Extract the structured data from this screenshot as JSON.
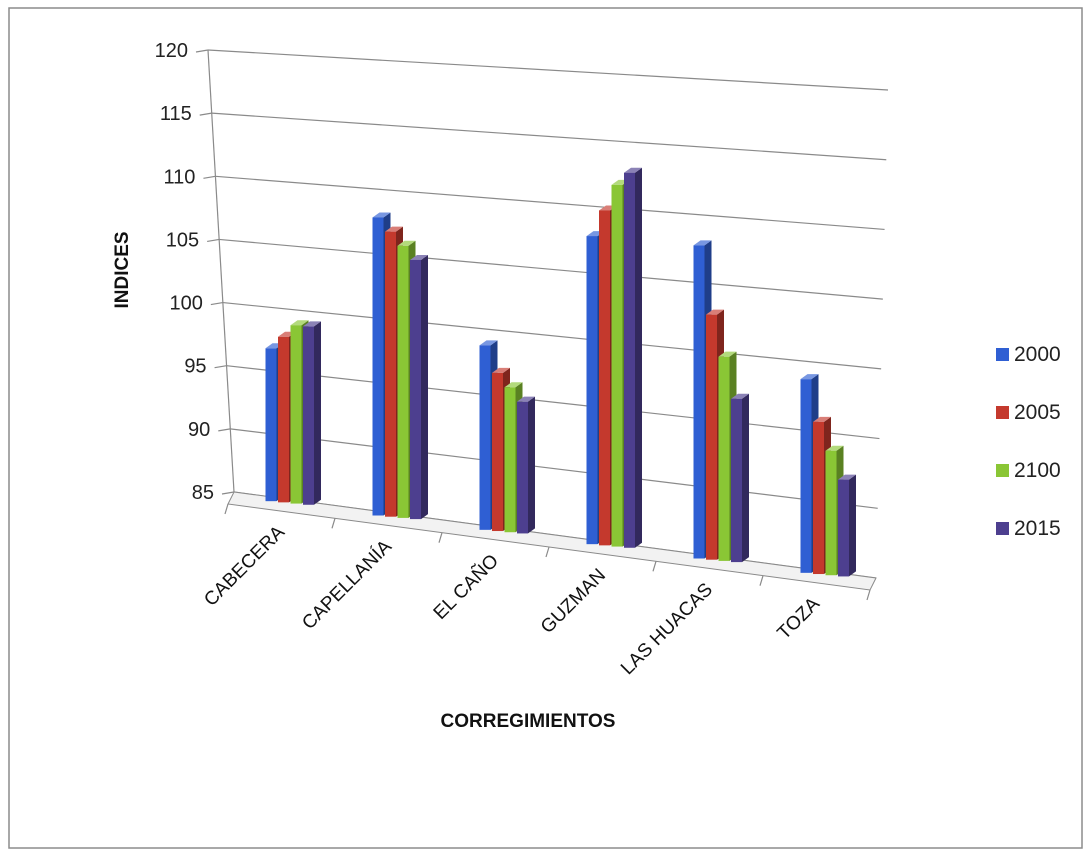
{
  "chart_data": {
    "type": "bar",
    "xlabel": "CORREGIMIENTOS",
    "ylabel": "INDICES",
    "ylim": [
      85,
      120
    ],
    "yticks": [
      85,
      90,
      95,
      100,
      105,
      110,
      115,
      120
    ],
    "grid": true,
    "legend_position": "right",
    "categories": [
      "CABECERA",
      "CAPELLANÍA",
      "EL CAÑO",
      "GUZMAN",
      "LAS HUACAS",
      "TOZA"
    ],
    "series": [
      {
        "name": "2000",
        "color": "#2f5fd3",
        "values": [
          97,
          108,
          99,
          108,
          108,
          99
        ]
      },
      {
        "name": "2005",
        "color": "#c4392d",
        "values": [
          98,
          107,
          97,
          110,
          103,
          96
        ]
      },
      {
        "name": "2100",
        "color": "#8ac635",
        "values": [
          99,
          106,
          96,
          112,
          100,
          94
        ]
      },
      {
        "name": "2015",
        "color": "#4d3f8f",
        "values": [
          99,
          105,
          95,
          113,
          97,
          92
        ]
      }
    ]
  }
}
